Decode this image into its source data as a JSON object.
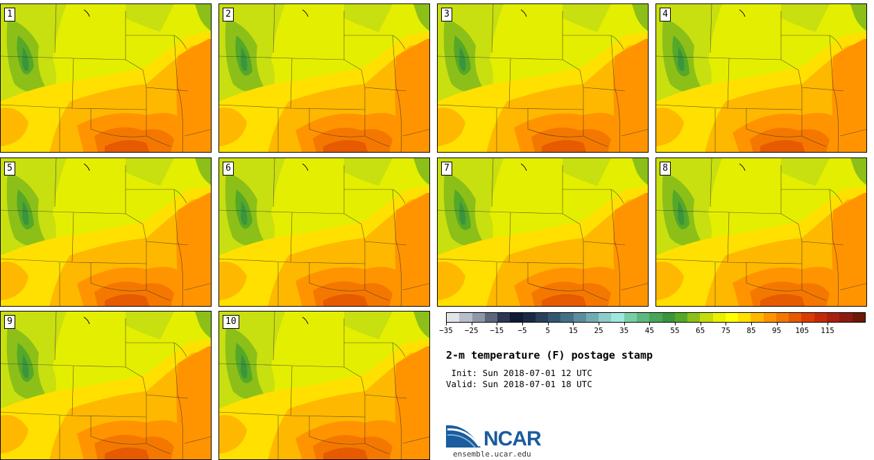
{
  "figure": {
    "title": "2-m temperature (F) postage stamp",
    "init_label": " Init: Sun 2018-07-01 12 UTC",
    "valid_label": "Valid: Sun 2018-07-01 18 UTC"
  },
  "members": [
    "1",
    "2",
    "3",
    "4",
    "5",
    "6",
    "7",
    "8",
    "9",
    "10"
  ],
  "colorbar": {
    "colors": [
      "#e2e4ea",
      "#b9bdc9",
      "#8f96a8",
      "#5e667d",
      "#2e3550",
      "#101a35",
      "#1a2a45",
      "#28405a",
      "#34566e",
      "#457085",
      "#5a8e9c",
      "#72aab2",
      "#8dcccb",
      "#9ee8de",
      "#78cfa6",
      "#5cb97d",
      "#48a55a",
      "#3a953c",
      "#56a828",
      "#8cc018",
      "#c4db0c",
      "#eaf000",
      "#ffff00",
      "#ffe000",
      "#ffb800",
      "#ff9400",
      "#f47800",
      "#e65a00",
      "#d83c00",
      "#c42a0a",
      "#a82010",
      "#8c1a10",
      "#6e1808"
    ],
    "tick_labels": [
      "−35",
      "−25",
      "−15",
      "−5",
      "5",
      "15",
      "25",
      "35",
      "45",
      "55",
      "65",
      "75",
      "85",
      "95",
      "105",
      "115"
    ]
  },
  "branding": {
    "logo_text": "NCAR",
    "url": "ensemble.ucar.edu",
    "logo_color": "#1b5c9e"
  }
}
